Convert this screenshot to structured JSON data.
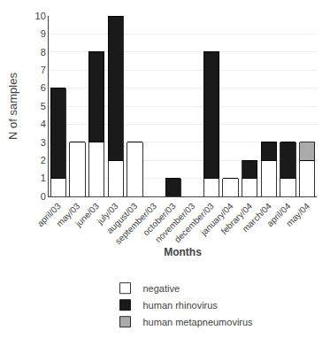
{
  "chart_data": {
    "type": "bar",
    "stacked": true,
    "categories": [
      "april/03",
      "may/03",
      "june/03",
      "july/03",
      "august/03",
      "september/03",
      "october/03",
      "november/03",
      "december/03",
      "january/04",
      "febrary/04",
      "march/04",
      "april/04",
      "may/04"
    ],
    "series": [
      {
        "name": "negative",
        "color": "#ffffff",
        "values": [
          1,
          3,
          3,
          2,
          3,
          0,
          0,
          0,
          1,
          1,
          1,
          2,
          1,
          2
        ]
      },
      {
        "name": "human rhinovirus",
        "color": "#1a1a1a",
        "values": [
          5,
          0,
          5,
          8,
          0,
          0,
          1,
          0,
          7,
          0,
          1,
          1,
          2,
          0
        ]
      },
      {
        "name": "human metapneumovirus",
        "color": "#aaaaaa",
        "values": [
          0,
          0,
          0,
          0,
          0,
          0,
          0,
          0,
          0,
          0,
          0,
          0,
          0,
          1
        ]
      }
    ],
    "xlabel": "Months",
    "ylabel": "N of samples",
    "ylim": [
      0,
      10
    ],
    "yticks": [
      0,
      1,
      2,
      3,
      4,
      5,
      6,
      7,
      8,
      9,
      10
    ],
    "grid": true,
    "legend": "bottom"
  }
}
